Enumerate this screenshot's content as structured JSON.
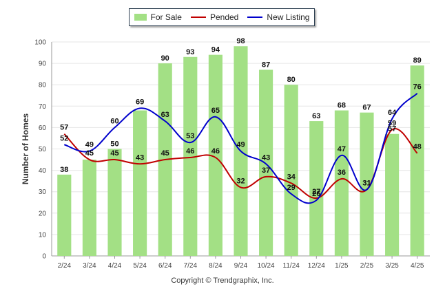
{
  "footer": {
    "copyright": "Copyright © Trendgraphix, Inc."
  },
  "chart_data": {
    "type": "bar",
    "categories": [
      "2/24",
      "3/24",
      "4/24",
      "5/24",
      "6/24",
      "7/24",
      "8/24",
      "9/24",
      "10/24",
      "11/24",
      "12/24",
      "1/25",
      "2/25",
      "3/25",
      "4/25"
    ],
    "series": [
      {
        "name": "For Sale",
        "type": "bar",
        "color": "#a3e085",
        "values": [
          38,
          45,
          50,
          68,
          90,
          93,
          94,
          98,
          87,
          80,
          63,
          68,
          67,
          57,
          89
        ],
        "labels": [
          38,
          null,
          50,
          null,
          90,
          93,
          94,
          98,
          87,
          80,
          63,
          68,
          67,
          57,
          89
        ]
      },
      {
        "name": "Pended",
        "type": "line",
        "color": "#c00000",
        "values": [
          57,
          45,
          45,
          43,
          45,
          46,
          46,
          32,
          37,
          34,
          27,
          36,
          31,
          59,
          48
        ],
        "labels": [
          57,
          45,
          45,
          43,
          45,
          46,
          46,
          32,
          37,
          34,
          27,
          36,
          31,
          59,
          48
        ]
      },
      {
        "name": "New Listing",
        "type": "line",
        "color": "#0000cc",
        "values": [
          52,
          49,
          60,
          69,
          63,
          53,
          65,
          49,
          43,
          29,
          26,
          47,
          31,
          64,
          76
        ],
        "labels": [
          52,
          49,
          60,
          69,
          63,
          53,
          65,
          49,
          43,
          29,
          26,
          47,
          31,
          64,
          76
        ]
      }
    ],
    "ylabel": "Number of Homes",
    "xlabel": "",
    "ylim": [
      0,
      100
    ],
    "yticks": [
      0,
      10,
      20,
      30,
      40,
      50,
      60,
      70,
      80,
      90,
      100
    ],
    "grid": true,
    "legend": "top-center"
  }
}
